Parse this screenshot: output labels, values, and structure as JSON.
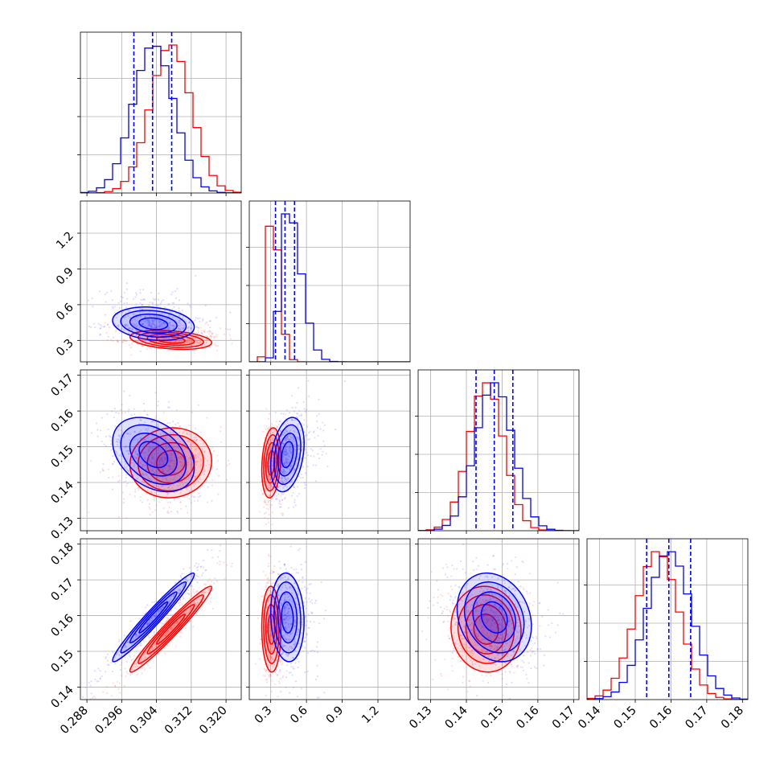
{
  "chart_data": {
    "type": "corner",
    "title": "",
    "grid": true,
    "series": [
      {
        "color": "#0000ff",
        "point_color": "#6b6bff"
      },
      {
        "color": "#ff0000",
        "point_color": "#ff6b6b"
      }
    ],
    "quantile_color": "#0000ff",
    "params": [
      {
        "range": [
          0.2865,
          0.3235
        ],
        "ticks": [
          "0.288",
          "0.296",
          "0.304",
          "0.312",
          "0.320"
        ],
        "mean": [
          0.3033,
          0.3073
        ],
        "sd": [
          0.0047,
          0.0047
        ],
        "quantiles": [
          0.2988,
          0.3031,
          0.3075
        ]
      },
      {
        "range": [
          0.12,
          1.47
        ],
        "ticks": [
          "0.3",
          "0.6",
          "0.9",
          "1.2"
        ],
        "mean": [
          0.44,
          0.305
        ],
        "sd": [
          0.07,
          0.04
        ],
        "quantiles": [
          0.34,
          0.42,
          0.5
        ]
      },
      {
        "range": [
          0.1265,
          0.1715
        ],
        "ticks": [
          "0.13",
          "0.14",
          "0.15",
          "0.16",
          "0.17"
        ],
        "mean": [
          0.1478,
          0.1455
        ],
        "sd": [
          0.0052,
          0.0049
        ],
        "quantiles": [
          0.1427,
          0.1478,
          0.153
        ]
      },
      {
        "range": [
          0.1365,
          0.1815
        ],
        "ticks": [
          "0.14",
          "0.15",
          "0.16",
          "0.17",
          "0.18"
        ],
        "mean": [
          0.1595,
          0.1562
        ],
        "sd": [
          0.0062,
          0.006
        ],
        "quantiles": [
          0.1532,
          0.1594,
          0.1655
        ]
      }
    ],
    "correlations": {
      "1-0": [
        -0.2,
        -0.3
      ],
      "2-0": [
        -0.35,
        0.05
      ],
      "2-1": [
        0.3,
        0.2
      ],
      "3-0": [
        0.97,
        0.97
      ],
      "3-1": [
        -0.1,
        -0.05
      ],
      "3-2": [
        -0.2,
        -0.05
      ]
    }
  }
}
